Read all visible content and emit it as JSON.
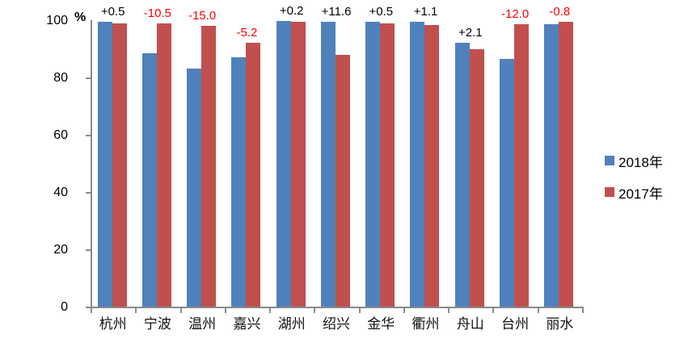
{
  "chart_data": {
    "type": "bar",
    "title": "",
    "categories": [
      "杭州",
      "宁波",
      "温州",
      "嘉兴",
      "湖州",
      "绍兴",
      "金华",
      "衢州",
      "舟山",
      "台州",
      "丽水"
    ],
    "series": [
      {
        "name": "2018年",
        "color": "#4F81BD",
        "values": [
          99.5,
          88.5,
          83.0,
          87.0,
          99.6,
          99.5,
          99.4,
          99.3,
          92.0,
          86.5,
          98.7
        ]
      },
      {
        "name": "2017年",
        "color": "#C0504D",
        "values": [
          99.0,
          99.0,
          98.0,
          92.2,
          99.4,
          87.9,
          98.9,
          98.2,
          89.9,
          98.5,
          99.5
        ]
      }
    ],
    "annotations": [
      {
        "text": "+0.5",
        "color": "#000000"
      },
      {
        "text": "-10.5",
        "color": "#FF0000"
      },
      {
        "text": "-15.0",
        "color": "#FF0000"
      },
      {
        "text": "-5.2",
        "color": "#FF0000"
      },
      {
        "text": "+0.2",
        "color": "#000000"
      },
      {
        "text": "+11.6",
        "color": "#000000"
      },
      {
        "text": "+0.5",
        "color": "#000000"
      },
      {
        "text": "+1.1",
        "color": "#000000"
      },
      {
        "text": "+2.1",
        "color": "#000000"
      },
      {
        "text": "-12.0",
        "color": "#FF0000"
      },
      {
        "text": "-0.8",
        "color": "#FF0000"
      }
    ],
    "y_axis": {
      "unit_label": "%",
      "ticks": [
        0,
        20,
        40,
        60,
        80,
        100
      ],
      "range": [
        0,
        100
      ]
    },
    "x_axis": {
      "label": ""
    },
    "grid": false,
    "axis_color": "#8a8a8a",
    "legend": {
      "position": "right",
      "entries": [
        {
          "label": "2018年",
          "color": "#4F81BD"
        },
        {
          "label": "2017年",
          "color": "#C0504D"
        }
      ]
    }
  }
}
